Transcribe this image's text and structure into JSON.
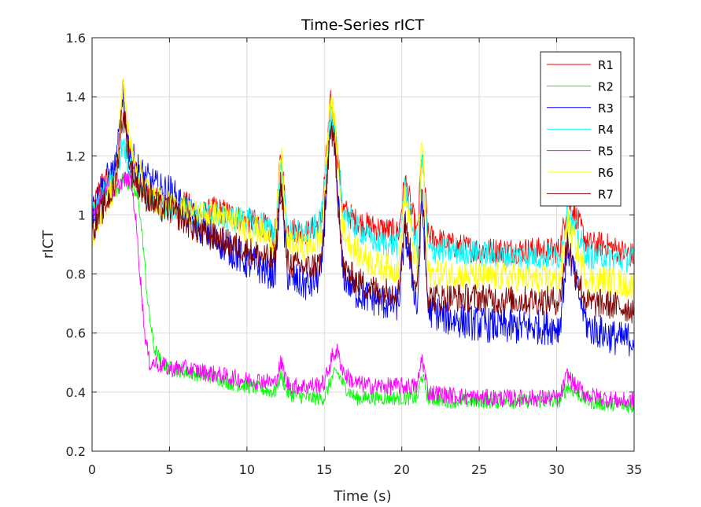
{
  "chart_data": {
    "type": "line",
    "title": "Time-Series rICT",
    "xlabel": "Time (s)",
    "ylabel": "rICT",
    "xlim": [
      0,
      35
    ],
    "ylim": [
      0.2,
      1.6
    ],
    "xticks": [
      0,
      5,
      10,
      15,
      20,
      25,
      30,
      35
    ],
    "yticks": [
      0.2,
      0.4,
      0.6,
      0.8,
      1,
      1.2,
      1.4,
      1.6
    ],
    "xtick_labels": [
      "0",
      "5",
      "10",
      "15",
      "20",
      "25",
      "30",
      "35"
    ],
    "ytick_labels": [
      "0.2",
      "0.4",
      "0.6",
      "0.8",
      "1",
      "1.2",
      "1.4",
      "1.6"
    ],
    "grid": true,
    "legend_position": "top-right",
    "series": [
      {
        "name": "R1",
        "color": "#ff0000",
        "x": [
          0,
          0.5,
          1,
          1.5,
          2,
          2.5,
          3,
          3.5,
          4,
          4.5,
          5,
          6,
          7,
          8,
          9,
          10,
          11,
          11.8,
          12.2,
          12.6,
          13,
          14,
          14.8,
          15.4,
          15.7,
          16.2,
          17,
          18,
          19,
          19.8,
          20.2,
          21,
          21.3,
          21.7,
          23,
          25,
          27,
          29,
          30.2,
          30.7,
          31.2,
          32,
          33,
          34,
          35
        ],
        "values": [
          1.0,
          1.1,
          1.12,
          1.1,
          1.42,
          1.18,
          1.12,
          1.08,
          1.05,
          1.04,
          1.02,
          1.04,
          1.0,
          1.02,
          1.0,
          0.98,
          0.97,
          0.92,
          1.22,
          0.95,
          0.95,
          0.94,
          0.98,
          1.38,
          1.28,
          1.02,
          0.98,
          0.96,
          0.95,
          0.94,
          1.12,
          0.93,
          1.22,
          0.93,
          0.9,
          0.88,
          0.88,
          0.88,
          0.88,
          1.05,
          1.0,
          0.9,
          0.9,
          0.88,
          0.86
        ]
      },
      {
        "name": "R2",
        "color": "#00ff00",
        "x": [
          0,
          0.5,
          1,
          1.5,
          2,
          2.5,
          3,
          3.3,
          3.6,
          4,
          4.5,
          5,
          6,
          7,
          8,
          9,
          10,
          11,
          11.8,
          12.2,
          12.6,
          13,
          14,
          15,
          15.5,
          15.8,
          16.3,
          17,
          18,
          19,
          20,
          21,
          21.3,
          21.7,
          23,
          25,
          27,
          29,
          30.2,
          30.7,
          31.2,
          32,
          33,
          34,
          35
        ],
        "values": [
          1.0,
          1.05,
          1.1,
          1.08,
          1.12,
          1.1,
          1.05,
          0.9,
          0.7,
          0.55,
          0.5,
          0.48,
          0.47,
          0.46,
          0.45,
          0.43,
          0.42,
          0.41,
          0.4,
          0.46,
          0.4,
          0.39,
          0.38,
          0.38,
          0.45,
          0.47,
          0.42,
          0.38,
          0.38,
          0.38,
          0.38,
          0.38,
          0.46,
          0.38,
          0.37,
          0.37,
          0.37,
          0.37,
          0.37,
          0.42,
          0.4,
          0.37,
          0.36,
          0.36,
          0.35
        ]
      },
      {
        "name": "R3",
        "color": "#0000ff",
        "x": [
          0,
          0.5,
          1,
          1.5,
          2,
          2.5,
          3,
          3.5,
          4,
          4.5,
          5,
          6,
          7,
          8,
          9,
          10,
          11,
          11.8,
          12.2,
          12.6,
          13,
          14,
          14.8,
          15.4,
          15.7,
          16.2,
          17,
          18,
          19,
          19.8,
          20.2,
          21,
          21.3,
          21.7,
          23,
          25,
          27,
          29,
          30.2,
          30.7,
          31.2,
          32,
          33,
          34,
          35
        ],
        "values": [
          1.0,
          1.08,
          1.12,
          1.15,
          1.38,
          1.2,
          1.15,
          1.12,
          1.1,
          1.08,
          1.08,
          1.02,
          0.96,
          0.92,
          0.88,
          0.84,
          0.82,
          0.8,
          1.1,
          0.8,
          0.78,
          0.76,
          0.8,
          1.32,
          1.2,
          0.8,
          0.74,
          0.72,
          0.7,
          0.7,
          0.95,
          0.68,
          1.05,
          0.68,
          0.65,
          0.63,
          0.62,
          0.62,
          0.62,
          0.9,
          0.78,
          0.62,
          0.6,
          0.58,
          0.58
        ]
      },
      {
        "name": "R4",
        "color": "#00ffff",
        "x": [
          0,
          0.5,
          1,
          1.5,
          2,
          2.5,
          3,
          3.5,
          4,
          4.5,
          5,
          6,
          7,
          8,
          9,
          10,
          11,
          11.8,
          12.2,
          12.6,
          13,
          14,
          14.8,
          15.4,
          15.7,
          16.2,
          17,
          18,
          19,
          19.8,
          20.2,
          21,
          21.3,
          21.7,
          23,
          25,
          27,
          29,
          30.2,
          30.7,
          31.2,
          32,
          33,
          34,
          35
        ],
        "values": [
          1.0,
          1.05,
          1.1,
          1.12,
          1.25,
          1.15,
          1.1,
          1.06,
          1.04,
          1.02,
          1.02,
          1.02,
          1.0,
          1.0,
          0.99,
          0.98,
          0.97,
          0.93,
          1.18,
          0.94,
          0.94,
          0.94,
          0.98,
          1.34,
          1.28,
          1.02,
          0.96,
          0.92,
          0.9,
          0.9,
          1.1,
          0.88,
          1.2,
          0.88,
          0.88,
          0.87,
          0.86,
          0.86,
          0.86,
          1.0,
          0.95,
          0.86,
          0.86,
          0.85,
          0.85
        ]
      },
      {
        "name": "R5",
        "color": "#ff00ff",
        "x": [
          0,
          0.5,
          1,
          1.5,
          2,
          2.5,
          2.8,
          3.1,
          3.4,
          3.7,
          4,
          4.5,
          5,
          6,
          7,
          8,
          9,
          10,
          11,
          11.8,
          12.2,
          12.6,
          13,
          14,
          15,
          15.5,
          15.8,
          16.3,
          17,
          18,
          19,
          20,
          21,
          21.3,
          21.7,
          23,
          25,
          27,
          29,
          30.2,
          30.7,
          31.2,
          32,
          33,
          34,
          35
        ],
        "values": [
          1.0,
          1.05,
          1.1,
          1.08,
          1.12,
          1.12,
          1.0,
          0.8,
          0.6,
          0.5,
          0.5,
          0.49,
          0.48,
          0.48,
          0.47,
          0.46,
          0.45,
          0.44,
          0.44,
          0.43,
          0.5,
          0.43,
          0.42,
          0.42,
          0.43,
          0.52,
          0.54,
          0.46,
          0.43,
          0.42,
          0.42,
          0.42,
          0.42,
          0.52,
          0.4,
          0.39,
          0.38,
          0.38,
          0.38,
          0.38,
          0.46,
          0.42,
          0.39,
          0.38,
          0.37,
          0.37
        ]
      },
      {
        "name": "R6",
        "color": "#ffff00",
        "x": [
          0,
          0.5,
          1,
          1.5,
          2,
          2.5,
          3,
          3.5,
          4,
          4.5,
          5,
          6,
          7,
          8,
          9,
          10,
          11,
          11.8,
          12.2,
          12.6,
          13,
          14,
          14.8,
          15.4,
          15.7,
          16.2,
          17,
          18,
          19,
          19.8,
          20.2,
          21,
          21.3,
          21.7,
          23,
          25,
          27,
          29,
          30.2,
          30.7,
          31.2,
          32,
          33,
          34,
          35
        ],
        "values": [
          0.9,
          1.0,
          1.05,
          1.1,
          1.45,
          1.22,
          1.15,
          1.1,
          1.06,
          1.04,
          1.03,
          1.02,
          1.0,
          1.0,
          0.98,
          0.96,
          0.94,
          0.9,
          1.22,
          0.9,
          0.9,
          0.89,
          0.92,
          1.4,
          1.3,
          0.95,
          0.88,
          0.84,
          0.82,
          0.82,
          1.08,
          0.8,
          1.28,
          0.8,
          0.8,
          0.79,
          0.79,
          0.78,
          0.78,
          0.98,
          0.9,
          0.78,
          0.78,
          0.77,
          0.76
        ]
      },
      {
        "name": "R7",
        "color": "#800000",
        "x": [
          0,
          0.5,
          1,
          1.5,
          2,
          2.5,
          3,
          3.5,
          4,
          4.5,
          5,
          6,
          7,
          8,
          9,
          10,
          11,
          11.8,
          12.2,
          12.6,
          13,
          14,
          14.8,
          15.4,
          15.7,
          16.2,
          17,
          18,
          19,
          19.8,
          20.2,
          21,
          21.3,
          21.7,
          23,
          25,
          27,
          29,
          30.2,
          30.7,
          31.2,
          32,
          33,
          34,
          35
        ],
        "values": [
          0.95,
          1.0,
          1.05,
          1.1,
          1.35,
          1.15,
          1.1,
          1.06,
          1.04,
          1.02,
          1.02,
          0.98,
          0.94,
          0.92,
          0.9,
          0.88,
          0.86,
          0.84,
          1.12,
          0.84,
          0.83,
          0.82,
          0.84,
          1.3,
          1.2,
          0.82,
          0.78,
          0.75,
          0.74,
          0.74,
          0.98,
          0.73,
          1.12,
          0.72,
          0.72,
          0.72,
          0.71,
          0.71,
          0.71,
          0.92,
          0.8,
          0.7,
          0.7,
          0.69,
          0.68
        ]
      }
    ]
  }
}
